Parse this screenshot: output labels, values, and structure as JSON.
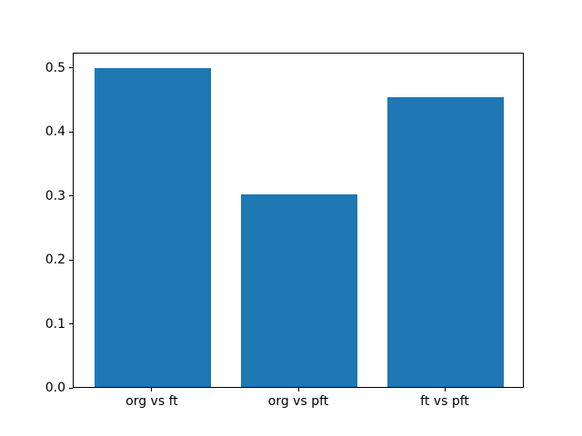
{
  "figure": {
    "background": "#ffffff",
    "frame_color": "#000000",
    "text_color": "#000000"
  },
  "chart_data": {
    "type": "bar",
    "title": "",
    "xlabel": "",
    "ylabel": "",
    "categories": [
      "org vs ft",
      "org vs pft",
      "ft vs pft"
    ],
    "values": [
      0.499,
      0.301,
      0.453
    ],
    "bar_color": "#1f77b4",
    "bar_width_fraction": 0.8,
    "xlim": [
      -0.54,
      2.54
    ],
    "ylim": [
      0,
      0.524
    ],
    "yticks": [
      0.0,
      0.1,
      0.2,
      0.3,
      0.4,
      0.5
    ],
    "ytick_labels": [
      "0.0",
      "0.1",
      "0.2",
      "0.3",
      "0.4",
      "0.5"
    ],
    "grid": false,
    "legend": null
  }
}
